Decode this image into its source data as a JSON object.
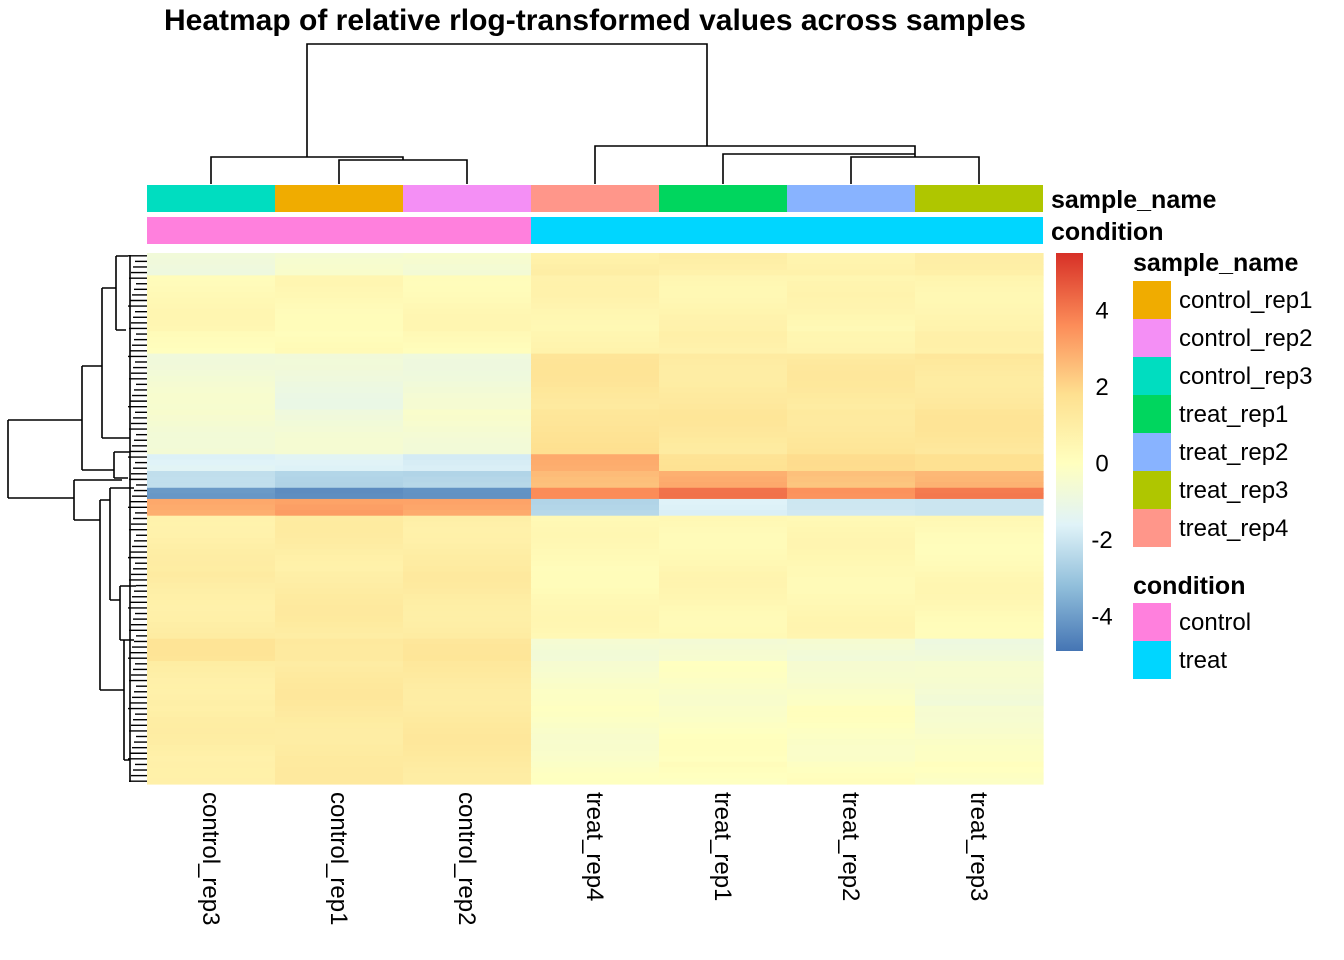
{
  "chart_data": {
    "type": "heatmap",
    "title": "Heatmap of relative rlog-transformed values across samples",
    "columns": [
      "control_rep3",
      "control_rep1",
      "control_rep2",
      "treat_rep4",
      "treat_rep1",
      "treat_rep2",
      "treat_rep3"
    ],
    "annotations": {
      "sample_name": {
        "label": "sample_name",
        "per_column": [
          "control_rep3",
          "control_rep1",
          "control_rep2",
          "treat_rep4",
          "treat_rep1",
          "treat_rep2",
          "treat_rep3"
        ]
      },
      "condition": {
        "label": "condition",
        "per_column": [
          "control",
          "control",
          "control",
          "treat",
          "treat",
          "treat",
          "treat"
        ]
      }
    },
    "legend_sample_name": {
      "title": "sample_name",
      "items": [
        {
          "label": "control_rep1",
          "color": "#F0AC00"
        },
        {
          "label": "control_rep2",
          "color": "#F48FF5"
        },
        {
          "label": "control_rep3",
          "color": "#00DDC0"
        },
        {
          "label": "treat_rep1",
          "color": "#00D65E"
        },
        {
          "label": "treat_rep2",
          "color": "#88B3FF"
        },
        {
          "label": "treat_rep3",
          "color": "#AFC600"
        },
        {
          "label": "treat_rep4",
          "color": "#FF968A"
        }
      ]
    },
    "legend_condition": {
      "title": "condition",
      "items": [
        {
          "label": "control",
          "color": "#FF80DD"
        },
        {
          "label": "treat",
          "color": "#00D6FF"
        }
      ]
    },
    "colorbar": {
      "range": [
        -4.9,
        5.5
      ],
      "ticks": [
        {
          "value": 4,
          "label": "4"
        },
        {
          "value": 2,
          "label": "2"
        },
        {
          "value": 0,
          "label": "0"
        },
        {
          "value": -2,
          "label": "-2"
        },
        {
          "value": -4,
          "label": "-4"
        }
      ],
      "stops": [
        {
          "value": -4.9,
          "color": "#4575B4"
        },
        {
          "value": -3.2,
          "color": "#91BFDB"
        },
        {
          "value": -1.6,
          "color": "#E0F3F8"
        },
        {
          "value": 0,
          "color": "#FFFFBF"
        },
        {
          "value": 1.8,
          "color": "#FEE090"
        },
        {
          "value": 3.6,
          "color": "#FC8D59"
        },
        {
          "value": 5.5,
          "color": "#D73027"
        }
      ]
    },
    "row_blocks": [
      {
        "rows": 4,
        "values": [
          -0.7,
          -0.5,
          -0.5,
          0.9,
          0.8,
          0.8,
          0.8
        ]
      },
      {
        "rows": 10,
        "values": [
          0.35,
          0.35,
          0.35,
          0.6,
          0.6,
          0.5,
          0.6
        ]
      },
      {
        "rows": 4,
        "values": [
          0.2,
          0.2,
          0.2,
          0.7,
          0.7,
          0.7,
          0.7
        ]
      },
      {
        "rows": 10,
        "values": [
          -0.6,
          -0.9,
          -0.7,
          1.4,
          1.2,
          1.2,
          1.3
        ]
      },
      {
        "rows": 8,
        "values": [
          -0.5,
          -0.7,
          -0.5,
          1.6,
          1.3,
          1.4,
          1.4
        ]
      },
      {
        "rows": 3,
        "values": [
          -1.6,
          -1.6,
          -1.7,
          2.8,
          1.8,
          1.7,
          1.9
        ]
      },
      {
        "rows": 3,
        "values": [
          -2.4,
          -2.4,
          -2.6,
          2.6,
          2.9,
          2.4,
          2.8
        ]
      },
      {
        "rows": 2,
        "values": [
          -4.2,
          -4.2,
          -4.4,
          3.8,
          4.0,
          3.6,
          3.9
        ]
      },
      {
        "rows": 3,
        "values": [
          3.0,
          3.2,
          3.0,
          -2.4,
          -1.8,
          -1.8,
          -2.2
        ]
      },
      {
        "rows": 10,
        "values": [
          0.9,
          1.0,
          1.0,
          0.3,
          0.4,
          0.4,
          0.3
        ]
      },
      {
        "rows": 12,
        "values": [
          1.0,
          1.1,
          1.1,
          0.35,
          0.45,
          0.45,
          0.35
        ]
      },
      {
        "rows": 4,
        "values": [
          1.4,
          1.4,
          1.3,
          -0.5,
          -0.6,
          -0.6,
          -0.8
        ]
      },
      {
        "rows": 8,
        "values": [
          1.0,
          1.2,
          1.2,
          -0.3,
          -0.2,
          -0.3,
          -0.6
        ]
      },
      {
        "rows": 10,
        "values": [
          0.9,
          1.2,
          1.2,
          -0.2,
          -0.1,
          -0.1,
          -0.3
        ]
      },
      {
        "rows": 4,
        "values": [
          1.0,
          1.1,
          1.2,
          -0.2,
          0.1,
          0.0,
          -0.1
        ]
      }
    ]
  }
}
